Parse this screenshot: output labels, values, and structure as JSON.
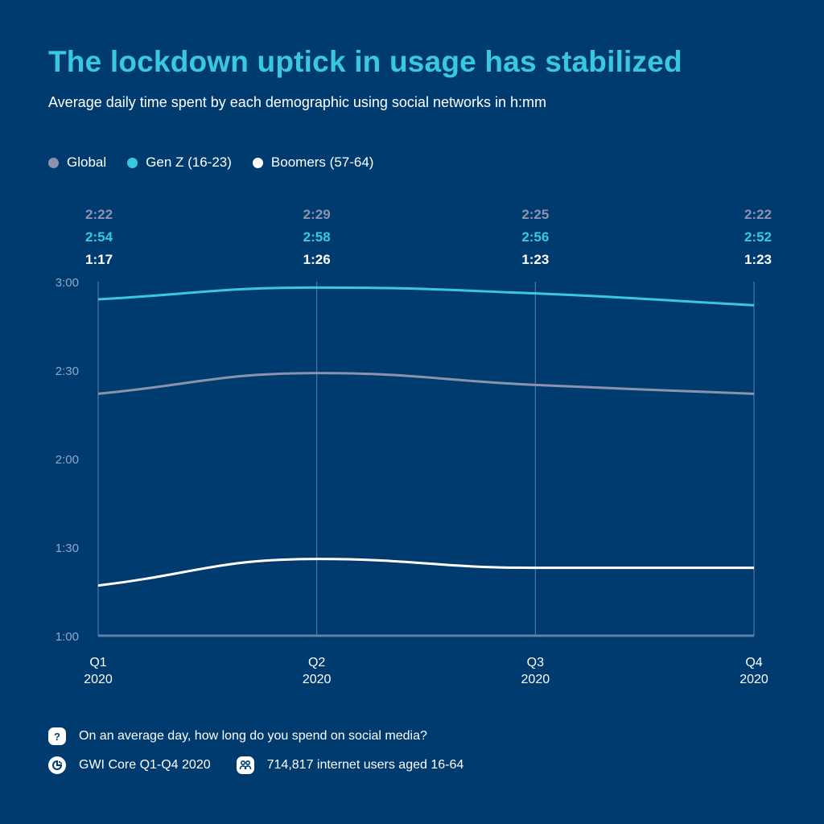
{
  "header": {
    "title": "The lockdown uptick in usage has stabilized",
    "subtitle": "Average daily time spent by each demographic using social networks in h:mm"
  },
  "colors": {
    "background": "#003b70",
    "global": "#8c92ad",
    "genz": "#3ac9dc",
    "boomers": "#ffffff",
    "grid": "#6d8fb3",
    "axis_label": "#8fa9c6"
  },
  "chart_data": {
    "type": "line",
    "title": "The lockdown uptick in usage has stabilized",
    "subtitle": "Average daily time spent by each demographic using social networks in h:mm",
    "xlabel": "",
    "ylabel": "",
    "categories": [
      [
        "Q1",
        "2020"
      ],
      [
        "Q2",
        "2020"
      ],
      [
        "Q3",
        "2020"
      ],
      [
        "Q4",
        "2020"
      ]
    ],
    "y_ticks": [
      "1:00",
      "1:30",
      "2:00",
      "2:30",
      "3:00"
    ],
    "y_tick_minutes": [
      60,
      90,
      120,
      150,
      180
    ],
    "ylim_minutes": [
      60,
      180
    ],
    "grid": "vertical lines at each quarter",
    "legend_position": "top-left",
    "series": [
      {
        "key": "global",
        "name": "Global",
        "color": "#8c92ad",
        "labels": [
          "2:22",
          "2:29",
          "2:25",
          "2:22"
        ],
        "values_minutes": [
          142,
          149,
          145,
          142
        ]
      },
      {
        "key": "genz",
        "name": "Gen Z (16-23)",
        "color": "#3ac9dc",
        "labels": [
          "2:54",
          "2:58",
          "2:56",
          "2:52"
        ],
        "values_minutes": [
          174,
          178,
          176,
          172
        ]
      },
      {
        "key": "boomers",
        "name": "Boomers (57-64)",
        "color": "#ffffff",
        "labels": [
          "1:17",
          "1:26",
          "1:23",
          "1:23"
        ],
        "values_minutes": [
          77,
          86,
          83,
          83
        ]
      }
    ]
  },
  "footer": {
    "question": "On an average day, how long do you spend on social media?",
    "source": "GWI Core Q1-Q4 2020",
    "sample": "714,817 internet users aged 16-64",
    "question_icon": "?"
  }
}
